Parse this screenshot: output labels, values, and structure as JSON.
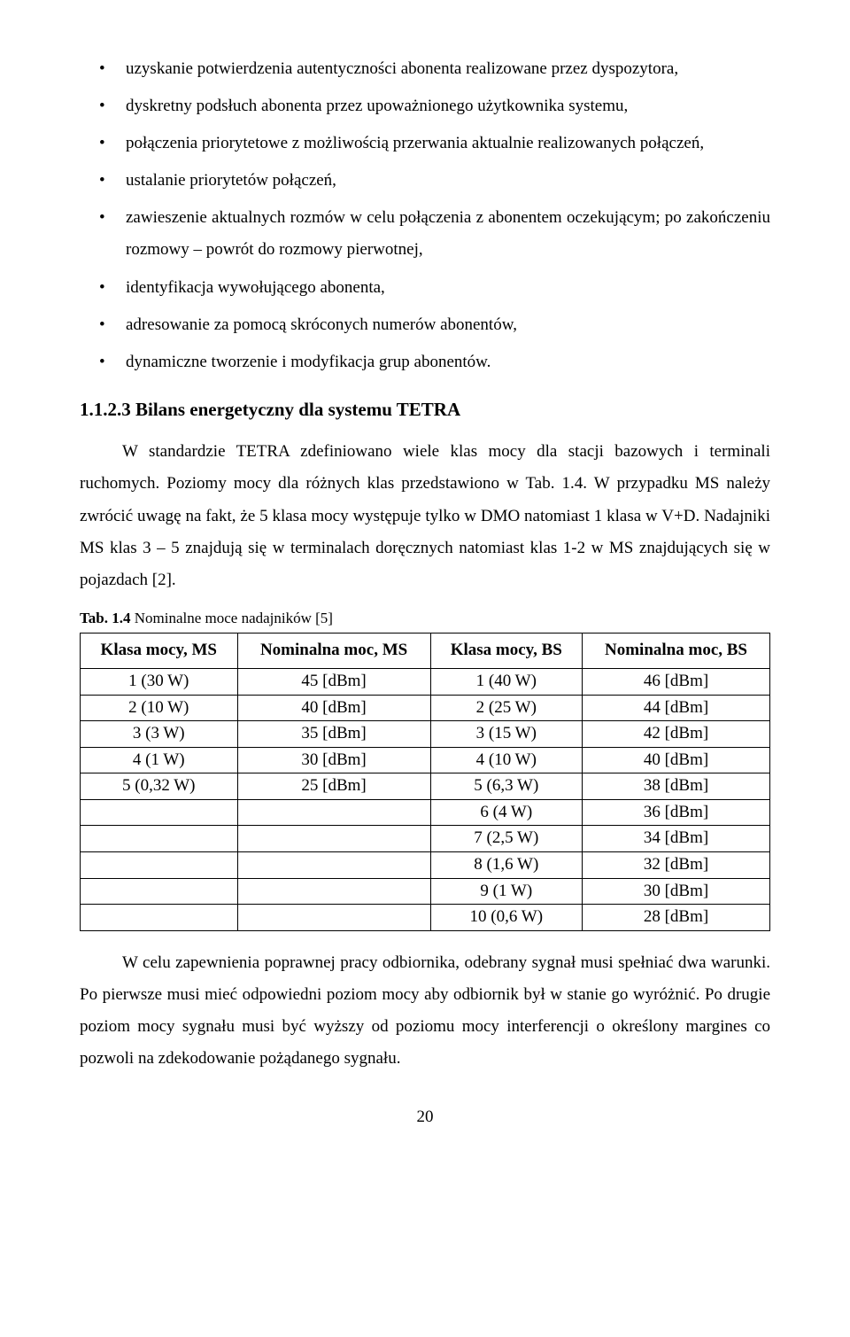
{
  "bullets": [
    "uzyskanie potwierdzenia autentyczności abonenta realizowane przez dyspozytora,",
    "dyskretny podsłuch abonenta przez upoważnionego użytkownika systemu,",
    "połączenia priorytetowe z możliwością przerwania aktualnie realizowanych połączeń,",
    "ustalanie priorytetów połączeń,",
    "zawieszenie aktualnych rozmów w celu połączenia z abonentem oczekującym; po zakończeniu rozmowy – powrót do rozmowy pierwotnej,",
    "identyfikacja wywołującego abonenta,",
    "adresowanie za pomocą skróconych numerów abonentów,",
    "dynamiczne tworzenie i modyfikacja grup abonentów."
  ],
  "section_heading": "1.1.2.3  Bilans energetyczny dla systemu TETRA",
  "para1": "W standardzie TETRA zdefiniowano wiele klas mocy dla stacji bazowych i terminali ruchomych. Poziomy mocy dla różnych klas przedstawiono w Tab. 1.4. W przypadku MS należy zwrócić uwagę na fakt, że 5 klasa mocy występuje tylko w DMO natomiast 1 klasa w V+D. Nadajniki MS klas 3 – 5 znajdują się w terminalach doręcznych natomiast klas 1-2 w MS znajdujących się w pojazdach [2].",
  "table_caption_bold": "Tab. 1.4",
  "table_caption_rest": "  Nominalne moce nadajników [5]",
  "table": {
    "headers": [
      "Klasa mocy, MS",
      "Nominalna moc, MS",
      "Klasa mocy, BS",
      "Nominalna moc, BS"
    ],
    "rows": [
      [
        "1 (30 W)",
        "45 [dBm]",
        "1 (40 W)",
        "46 [dBm]"
      ],
      [
        "2 (10 W)",
        "40 [dBm]",
        "2 (25 W)",
        "44 [dBm]"
      ],
      [
        "3 (3 W)",
        "35 [dBm]",
        "3 (15 W)",
        "42 [dBm]"
      ],
      [
        "4 (1 W)",
        "30 [dBm]",
        "4 (10 W)",
        "40 [dBm]"
      ],
      [
        "5 (0,32 W)",
        "25 [dBm]",
        "5 (6,3 W)",
        "38 [dBm]"
      ],
      [
        "",
        "",
        "6 (4 W)",
        "36 [dBm]"
      ],
      [
        "",
        "",
        "7 (2,5 W)",
        "34 [dBm]"
      ],
      [
        "",
        "",
        "8 (1,6 W)",
        "32 [dBm]"
      ],
      [
        "",
        "",
        "9 (1 W)",
        "30 [dBm]"
      ],
      [
        "",
        "",
        "10 (0,6 W)",
        "28 [dBm]"
      ]
    ]
  },
  "para2": "W celu zapewnienia poprawnej pracy odbiornika, odebrany sygnał musi spełniać dwa warunki. Po pierwsze musi mieć odpowiedni poziom mocy aby odbiornik był w stanie go wyróżnić. Po drugie poziom mocy sygnału musi być wyższy od poziomu mocy interferencji o określony margines co pozwoli na zdekodowanie pożądanego sygnału.",
  "page_number": "20"
}
